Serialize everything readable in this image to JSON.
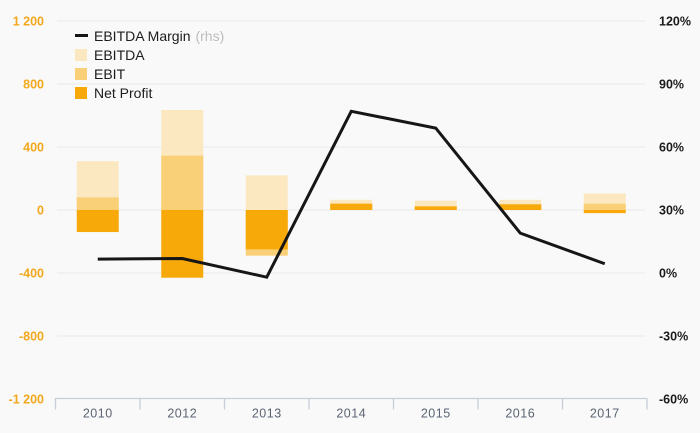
{
  "chart_data": {
    "type": "bar",
    "subtype": "layered-bars-with-line-overlay",
    "title": "",
    "categories": [
      "2010",
      "2012",
      "2013",
      "2014",
      "2015",
      "2016",
      "2017"
    ],
    "bar_series": [
      {
        "name": "EBITDA",
        "color": "#FBE8C0",
        "values": [
          310,
          635,
          220,
          65,
          60,
          65,
          105
        ]
      },
      {
        "name": "EBIT",
        "color": "#F9D077",
        "values": [
          80,
          345,
          -290,
          40,
          25,
          38,
          40
        ]
      },
      {
        "name": "Net Profit",
        "color": "#F7A90A",
        "values": [
          -140,
          -430,
          -250,
          40,
          22,
          35,
          -20
        ]
      }
    ],
    "line_series": {
      "name": "EBITDA Margin",
      "axis": "rhs",
      "color": "#161616",
      "values_pct": [
        6.6,
        6.9,
        -2,
        77,
        69,
        19,
        4.4
      ]
    },
    "left_axis": {
      "min": -1200,
      "max": 1200,
      "step": 400,
      "tick_labels": [
        "1 200",
        "800",
        "400",
        "0",
        "-400",
        "-800",
        "-1 200"
      ],
      "color": "#F2A81D"
    },
    "right_axis": {
      "min": -60,
      "max": 120,
      "step": 30,
      "tick_labels": [
        "120%",
        "90%",
        "60%",
        "30%",
        "0%",
        "-30%",
        "-60%"
      ],
      "color": "#1B1B1B"
    },
    "legend": [
      {
        "label": "EBITDA Margin",
        "suffix": "(rhs)",
        "swatch": "line",
        "color": "#161616"
      },
      {
        "label": "EBITDA",
        "suffix": "",
        "swatch": "square",
        "color": "#FBE8C0"
      },
      {
        "label": "EBIT",
        "suffix": "",
        "swatch": "square",
        "color": "#F9D077"
      },
      {
        "label": "Net Profit",
        "suffix": "",
        "swatch": "square",
        "color": "#F7A90A"
      }
    ],
    "grid": {
      "on": true,
      "color": "#E9E9E9"
    },
    "axis_line_color": "#C7CEDA",
    "x_label_color": "#5B6472",
    "background": "#F9F9F9"
  }
}
